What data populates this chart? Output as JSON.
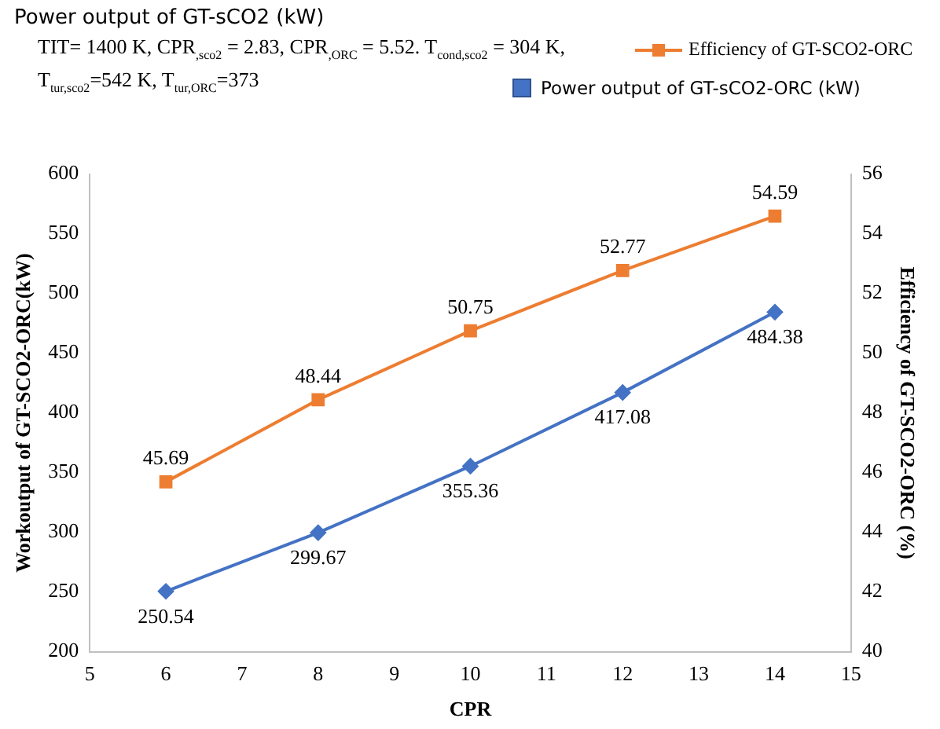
{
  "chart_data": {
    "type": "line",
    "title": "Power output of GT-sCO2 (kW)",
    "annotations": [
      "TIT= 1400 K, CPR$_{,sco2}$ = 2.83, CPR$_{,ORC}$ = 5.52. T$_{cond,sco2}$ = 304 K,",
      "T$_{tur,sco2}$=542 K, T$_{tur,ORC}$=373"
    ],
    "xlabel": "CPR",
    "ylabel": "Workoutput of GT-SCO2-ORC(kW)",
    "y2label": "Efficiency of GT-SCO2-ORC (%)",
    "x": [
      6,
      8,
      10,
      12,
      14
    ],
    "series": [
      {
        "name": "Efficiency of GT-SCO2-ORC",
        "color": "#ed7d31",
        "values": [
          45.69,
          48.44,
          50.75,
          52.77,
          54.59
        ],
        "axis": "y2",
        "marker": "square"
      },
      {
        "name": "Power output of GT-sCO2-ORC (kW)",
        "color": "#4472c4",
        "values": [
          250.54,
          299.67,
          355.36,
          417.08,
          484.38
        ],
        "marker": "diamond"
      }
    ],
    "xlim": [
      5,
      15
    ],
    "xticks": [
      5,
      6,
      7,
      8,
      9,
      10,
      11,
      12,
      13,
      14,
      15
    ],
    "ylim": [
      200,
      600
    ],
    "yticks": [
      200,
      250,
      300,
      350,
      400,
      450,
      500,
      550,
      600
    ],
    "y2lim": [
      40,
      56
    ],
    "y2ticks": [
      40,
      42,
      44,
      46,
      48,
      50,
      52,
      54,
      56
    ],
    "data_labels": true,
    "legend": "top right",
    "grid": false,
    "line_style": "solid"
  }
}
